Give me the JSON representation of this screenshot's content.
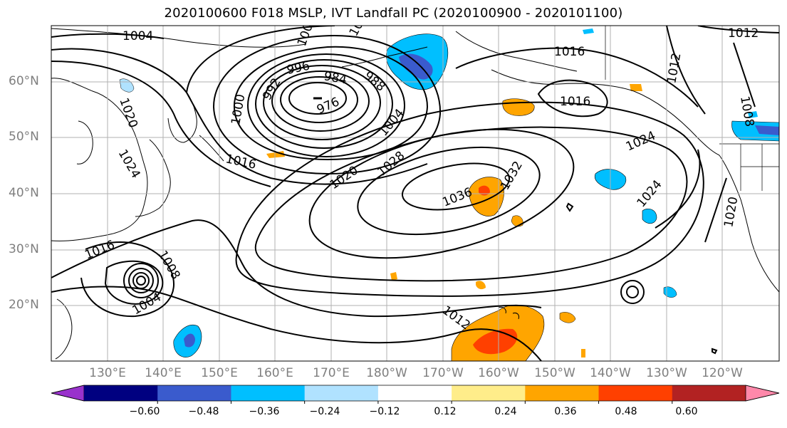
{
  "title": "2020100600 F018 MSLP, IVT Landfall PC (2020100900 - 2020101100)",
  "lat_labels": [
    "60°N",
    "50°N",
    "40°N",
    "30°N",
    "20°N"
  ],
  "lon_labels": [
    "130°E",
    "140°E",
    "150°E",
    "160°E",
    "170°E",
    "180°W",
    "170°W",
    "160°W",
    "150°W",
    "140°W",
    "130°W",
    "120°W"
  ],
  "contour_labels": {
    "c1004_nw": "1004",
    "c1012_ne": "1012",
    "c1016_ak": "1016",
    "c1016_ak2": "1016",
    "c1012_v": "1012",
    "c1008_ne": "1008",
    "c1020_w": "1020",
    "c1024_w": "1024",
    "c1016_mid": "1016",
    "c1020_mid": "1020",
    "c1028": "1028",
    "c1032": "1032",
    "c1036": "1036",
    "c1024_e": "1024",
    "c1024_se": "1024",
    "c1020_e": "1020",
    "c1016_sw": "1016",
    "c1008_ty": "1008",
    "c1004_ty": "1004",
    "c1012_s": "1012",
    "low_996": "996",
    "low_984": "984",
    "low_988": "988",
    "low_992": "992",
    "low_976": "976",
    "low_1000": "1000",
    "low_1004": "1004",
    "low_1008a": "100",
    "low_1008b": "10"
  },
  "colorbar": {
    "ticks": [
      "−0.60",
      "−0.48",
      "−0.36",
      "−0.24",
      "−0.12",
      "0.12",
      "0.24",
      "0.36",
      "0.48",
      "0.60"
    ],
    "colors": [
      "#9932cc",
      "#000080",
      "#3a5bcd",
      "#00bfff",
      "#b0e2ff",
      "#ffffff",
      "#ffed8a",
      "#ffa500",
      "#ff4000",
      "#b22222",
      "#ff88aa"
    ]
  }
}
